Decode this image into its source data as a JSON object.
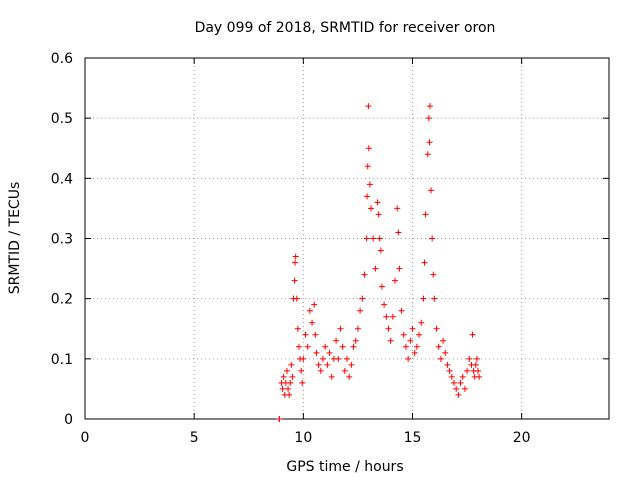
{
  "chart_data": {
    "type": "scatter",
    "title": "Day 099 of 2018, SRMTID for receiver oron",
    "xlabel": "GPS time / hours",
    "ylabel": "SRMTID / TECUs",
    "xlim": [
      0,
      24
    ],
    "ylim": [
      0,
      0.6
    ],
    "xticks": [
      0,
      5,
      10,
      15,
      20
    ],
    "yticks": [
      0,
      0.1,
      0.2,
      0.3,
      0.4,
      0.5,
      0.6
    ],
    "xtick_labels": [
      "0",
      "5",
      "10",
      "15",
      "20"
    ],
    "ytick_labels": [
      "0",
      "0.1",
      "0.2",
      "0.3",
      "0.4",
      "0.5",
      "0.6"
    ],
    "grid": true,
    "marker": "+",
    "series": [
      {
        "name": "SRMTID",
        "color": "#ff0000",
        "points": [
          [
            8.9,
            0.0
          ],
          [
            8.9,
            0.0
          ],
          [
            9.0,
            0.06
          ],
          [
            9.05,
            0.05
          ],
          [
            9.1,
            0.07
          ],
          [
            9.15,
            0.04
          ],
          [
            9.2,
            0.06
          ],
          [
            9.25,
            0.08
          ],
          [
            9.3,
            0.05
          ],
          [
            9.35,
            0.04
          ],
          [
            9.4,
            0.06
          ],
          [
            9.45,
            0.09
          ],
          [
            9.5,
            0.07
          ],
          [
            9.55,
            0.2
          ],
          [
            9.6,
            0.23
          ],
          [
            9.62,
            0.26
          ],
          [
            9.65,
            0.27
          ],
          [
            9.7,
            0.2
          ],
          [
            9.75,
            0.15
          ],
          [
            9.8,
            0.12
          ],
          [
            9.85,
            0.1
          ],
          [
            9.9,
            0.08
          ],
          [
            9.95,
            0.06
          ],
          [
            10.0,
            0.1
          ],
          [
            10.1,
            0.14
          ],
          [
            10.2,
            0.12
          ],
          [
            10.3,
            0.18
          ],
          [
            10.4,
            0.16
          ],
          [
            10.5,
            0.19
          ],
          [
            10.55,
            0.14
          ],
          [
            10.6,
            0.11
          ],
          [
            10.7,
            0.09
          ],
          [
            10.8,
            0.08
          ],
          [
            10.9,
            0.1
          ],
          [
            11.0,
            0.12
          ],
          [
            11.1,
            0.09
          ],
          [
            11.2,
            0.11
          ],
          [
            11.3,
            0.07
          ],
          [
            11.4,
            0.1
          ],
          [
            11.5,
            0.13
          ],
          [
            11.6,
            0.1
          ],
          [
            11.7,
            0.15
          ],
          [
            11.8,
            0.12
          ],
          [
            11.9,
            0.08
          ],
          [
            12.0,
            0.1
          ],
          [
            12.1,
            0.07
          ],
          [
            12.2,
            0.09
          ],
          [
            12.3,
            0.12
          ],
          [
            12.4,
            0.13
          ],
          [
            12.5,
            0.15
          ],
          [
            12.6,
            0.18
          ],
          [
            12.7,
            0.2
          ],
          [
            12.8,
            0.24
          ],
          [
            12.9,
            0.3
          ],
          [
            12.92,
            0.37
          ],
          [
            12.95,
            0.42
          ],
          [
            13.0,
            0.45
          ],
          [
            12.98,
            0.52
          ],
          [
            13.05,
            0.39
          ],
          [
            13.1,
            0.35
          ],
          [
            13.2,
            0.3
          ],
          [
            13.3,
            0.25
          ],
          [
            13.4,
            0.36
          ],
          [
            13.45,
            0.34
          ],
          [
            13.5,
            0.3
          ],
          [
            13.55,
            0.28
          ],
          [
            13.6,
            0.22
          ],
          [
            13.7,
            0.19
          ],
          [
            13.8,
            0.17
          ],
          [
            13.9,
            0.15
          ],
          [
            14.0,
            0.13
          ],
          [
            14.1,
            0.17
          ],
          [
            14.2,
            0.23
          ],
          [
            14.3,
            0.35
          ],
          [
            14.35,
            0.31
          ],
          [
            14.4,
            0.25
          ],
          [
            14.5,
            0.18
          ],
          [
            14.6,
            0.14
          ],
          [
            14.7,
            0.12
          ],
          [
            14.8,
            0.1
          ],
          [
            14.9,
            0.13
          ],
          [
            15.0,
            0.15
          ],
          [
            15.1,
            0.11
          ],
          [
            15.2,
            0.12
          ],
          [
            15.3,
            0.14
          ],
          [
            15.4,
            0.16
          ],
          [
            15.5,
            0.2
          ],
          [
            15.55,
            0.26
          ],
          [
            15.6,
            0.34
          ],
          [
            15.7,
            0.44
          ],
          [
            15.75,
            0.5
          ],
          [
            15.8,
            0.52
          ],
          [
            15.78,
            0.46
          ],
          [
            15.85,
            0.38
          ],
          [
            15.9,
            0.3
          ],
          [
            15.95,
            0.24
          ],
          [
            16.0,
            0.2
          ],
          [
            16.1,
            0.15
          ],
          [
            16.2,
            0.12
          ],
          [
            16.3,
            0.1
          ],
          [
            16.4,
            0.13
          ],
          [
            16.5,
            0.11
          ],
          [
            16.6,
            0.09
          ],
          [
            16.7,
            0.08
          ],
          [
            16.8,
            0.07
          ],
          [
            16.9,
            0.06
          ],
          [
            17.0,
            0.05
          ],
          [
            17.1,
            0.04
          ],
          [
            17.2,
            0.06
          ],
          [
            17.3,
            0.07
          ],
          [
            17.4,
            0.05
          ],
          [
            17.5,
            0.08
          ],
          [
            17.6,
            0.1
          ],
          [
            17.7,
            0.09
          ],
          [
            17.75,
            0.14
          ],
          [
            17.8,
            0.08
          ],
          [
            17.85,
            0.07
          ],
          [
            17.9,
            0.09
          ],
          [
            17.95,
            0.1
          ],
          [
            18.0,
            0.08
          ],
          [
            18.05,
            0.07
          ]
        ]
      }
    ]
  }
}
